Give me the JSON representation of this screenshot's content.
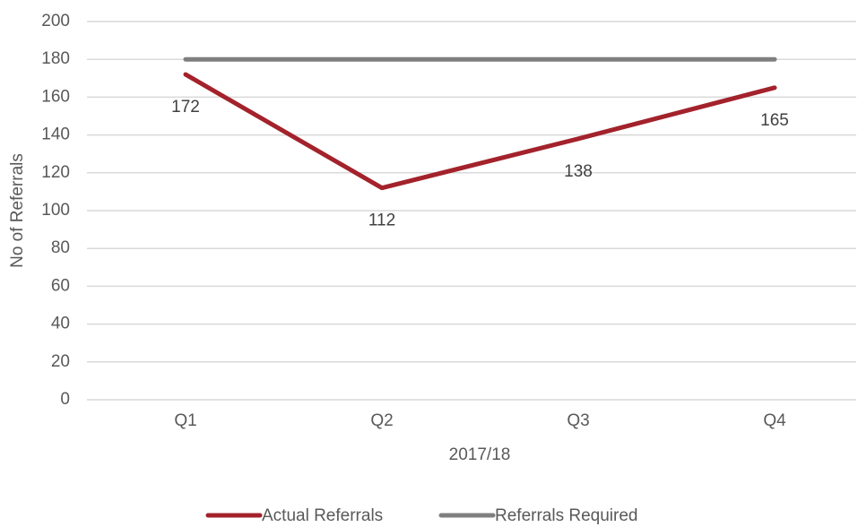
{
  "chart_data": {
    "type": "line",
    "categories": [
      "Q1",
      "Q2",
      "Q3",
      "Q4"
    ],
    "series": [
      {
        "name": "Actual Referrals",
        "color": "#a3222b",
        "values": [
          172,
          112,
          138,
          165
        ],
        "data_labels": true
      },
      {
        "name": "Referrals Required",
        "color": "#7f7f7f",
        "values": [
          180,
          180,
          180,
          180
        ],
        "data_labels": false
      }
    ],
    "x_label": "2017/18",
    "y_label": "No of Referrals",
    "ylim": [
      0,
      200
    ],
    "yticks": [
      0,
      20,
      40,
      60,
      80,
      100,
      120,
      140,
      160,
      180,
      200
    ],
    "grid": true,
    "legend": "bottom"
  }
}
